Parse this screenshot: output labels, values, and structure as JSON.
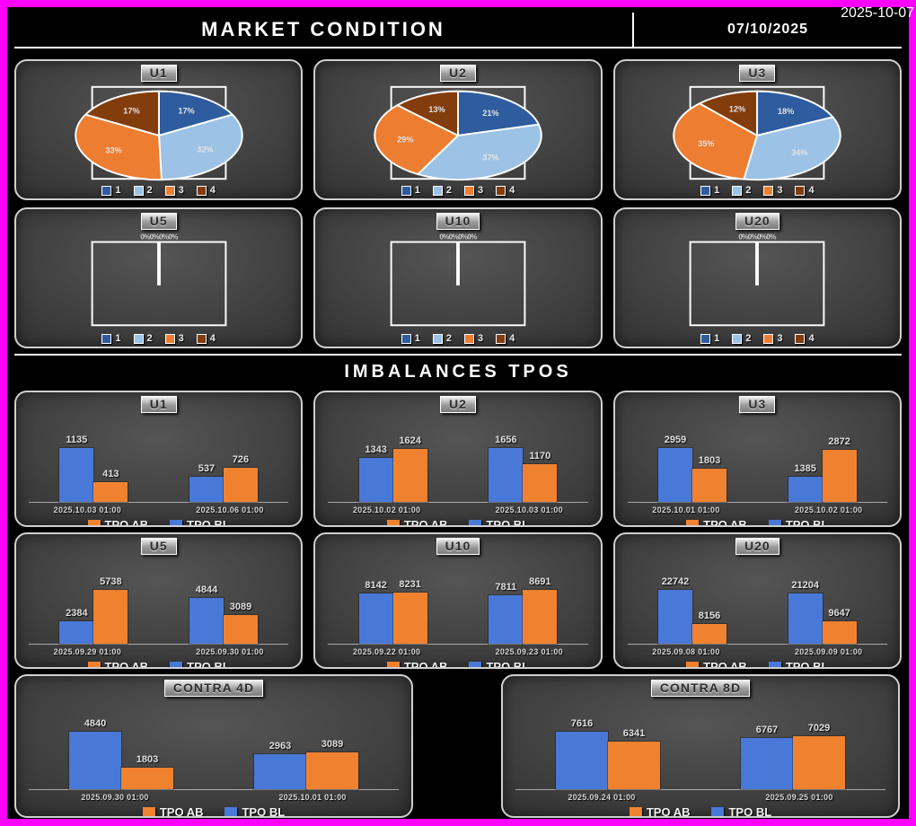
{
  "header": {
    "title": "MARKET CONDITION",
    "date": "07/10/2025",
    "watermark": "2025-10-07"
  },
  "sections": {
    "imbalances_title": "IMBALANCES TPOS"
  },
  "colors": {
    "frame": "#FF00FF",
    "pie": {
      "s1": "#2E5C9E",
      "s2": "#9CC2E5",
      "s3": "#ED7D31",
      "s4": "#833C0C"
    },
    "bar": {
      "ab": "#F0822F",
      "bl": "#4979D8"
    }
  },
  "pie_legend": [
    "1",
    "2",
    "3",
    "4"
  ],
  "bar_legend": {
    "ab": "TPO AB",
    "bl": "TPO BL"
  },
  "chart_data": {
    "pies": [
      {
        "type": "pie",
        "title": "U1",
        "labels": [
          "1",
          "2",
          "3",
          "4"
        ],
        "values_pct": [
          17,
          32,
          33,
          17
        ],
        "empty": false
      },
      {
        "type": "pie",
        "title": "U2",
        "labels": [
          "1",
          "2",
          "3",
          "4"
        ],
        "values_pct": [
          21,
          37,
          29,
          13
        ],
        "empty": false
      },
      {
        "type": "pie",
        "title": "U3",
        "labels": [
          "1",
          "2",
          "3",
          "4"
        ],
        "values_pct": [
          18,
          34,
          35,
          12
        ],
        "empty": false
      },
      {
        "type": "pie",
        "title": "U5",
        "labels": [
          "1",
          "2",
          "3",
          "4"
        ],
        "values_pct": [
          0,
          0,
          0,
          0
        ],
        "empty": true,
        "zero_label": "0%0%0%0%"
      },
      {
        "type": "pie",
        "title": "U10",
        "labels": [
          "1",
          "2",
          "3",
          "4"
        ],
        "values_pct": [
          0,
          0,
          0,
          0
        ],
        "empty": true,
        "zero_label": "0%0%0%0%"
      },
      {
        "type": "pie",
        "title": "U20",
        "labels": [
          "1",
          "2",
          "3",
          "4"
        ],
        "values_pct": [
          0,
          0,
          0,
          0
        ],
        "empty": true,
        "zero_label": "0%0%0%0%"
      }
    ],
    "bars": [
      {
        "type": "bar",
        "title": "U1",
        "wide": false,
        "series_order": [
          "bl",
          "ab"
        ],
        "groups": [
          {
            "x": "2025.10.03 01:00",
            "bl": 1135,
            "ab": 413
          },
          {
            "x": "2025.10.06 01:00",
            "bl": 537,
            "ab": 726
          }
        ]
      },
      {
        "type": "bar",
        "title": "U2",
        "wide": false,
        "series_order": [
          "bl",
          "ab"
        ],
        "groups": [
          {
            "x": "2025.10.02 01:00",
            "bl": 1343,
            "ab": 1624
          },
          {
            "x": "2025.10.03 01:00",
            "bl": 1656,
            "ab": 1170
          }
        ]
      },
      {
        "type": "bar",
        "title": "U3",
        "wide": false,
        "series_order": [
          "bl",
          "ab"
        ],
        "groups": [
          {
            "x": "2025.10.01 01:00",
            "bl": 2959,
            "ab": 1803
          },
          {
            "x": "2025.10.02 01:00",
            "bl": 1385,
            "ab": 2872
          }
        ]
      },
      {
        "type": "bar",
        "title": "U5",
        "wide": false,
        "series_order": [
          "bl",
          "ab"
        ],
        "groups": [
          {
            "x": "2025.09.29 01:00",
            "bl": 2384,
            "ab": 5738
          },
          {
            "x": "2025.09.30 01:00",
            "bl": 4844,
            "ab": 3089
          }
        ]
      },
      {
        "type": "bar",
        "title": "U10",
        "wide": false,
        "series_order": [
          "bl",
          "ab"
        ],
        "groups": [
          {
            "x": "2025.09.22 01:00",
            "bl": 8142,
            "ab": 8231
          },
          {
            "x": "2025.09.23 01:00",
            "bl": 7811,
            "ab": 8691
          }
        ]
      },
      {
        "type": "bar",
        "title": "U20",
        "wide": false,
        "series_order": [
          "bl",
          "ab"
        ],
        "groups": [
          {
            "x": "2025.09.08 01:00",
            "bl": 22742,
            "ab": 8156
          },
          {
            "x": "2025.09.09 01:00",
            "bl": 21204,
            "ab": 9647
          }
        ]
      },
      {
        "type": "bar",
        "title": "CONTRA 4D",
        "wide": true,
        "series_order": [
          "bl",
          "ab"
        ],
        "groups": [
          {
            "x": "2025.09.30 01:00",
            "bl": 4840,
            "ab": 1803
          },
          {
            "x": "2025.10.01 01:00",
            "bl": 2963,
            "ab": 3089
          }
        ]
      },
      {
        "type": "bar",
        "title": "CONTRA 8D",
        "wide": true,
        "series_order": [
          "bl",
          "ab"
        ],
        "groups": [
          {
            "x": "2025.09.24 01:00",
            "bl": 7616,
            "ab": 6341
          },
          {
            "x": "2025.09.25 01:00",
            "bl": 6767,
            "ab": 7029
          }
        ]
      }
    ]
  }
}
